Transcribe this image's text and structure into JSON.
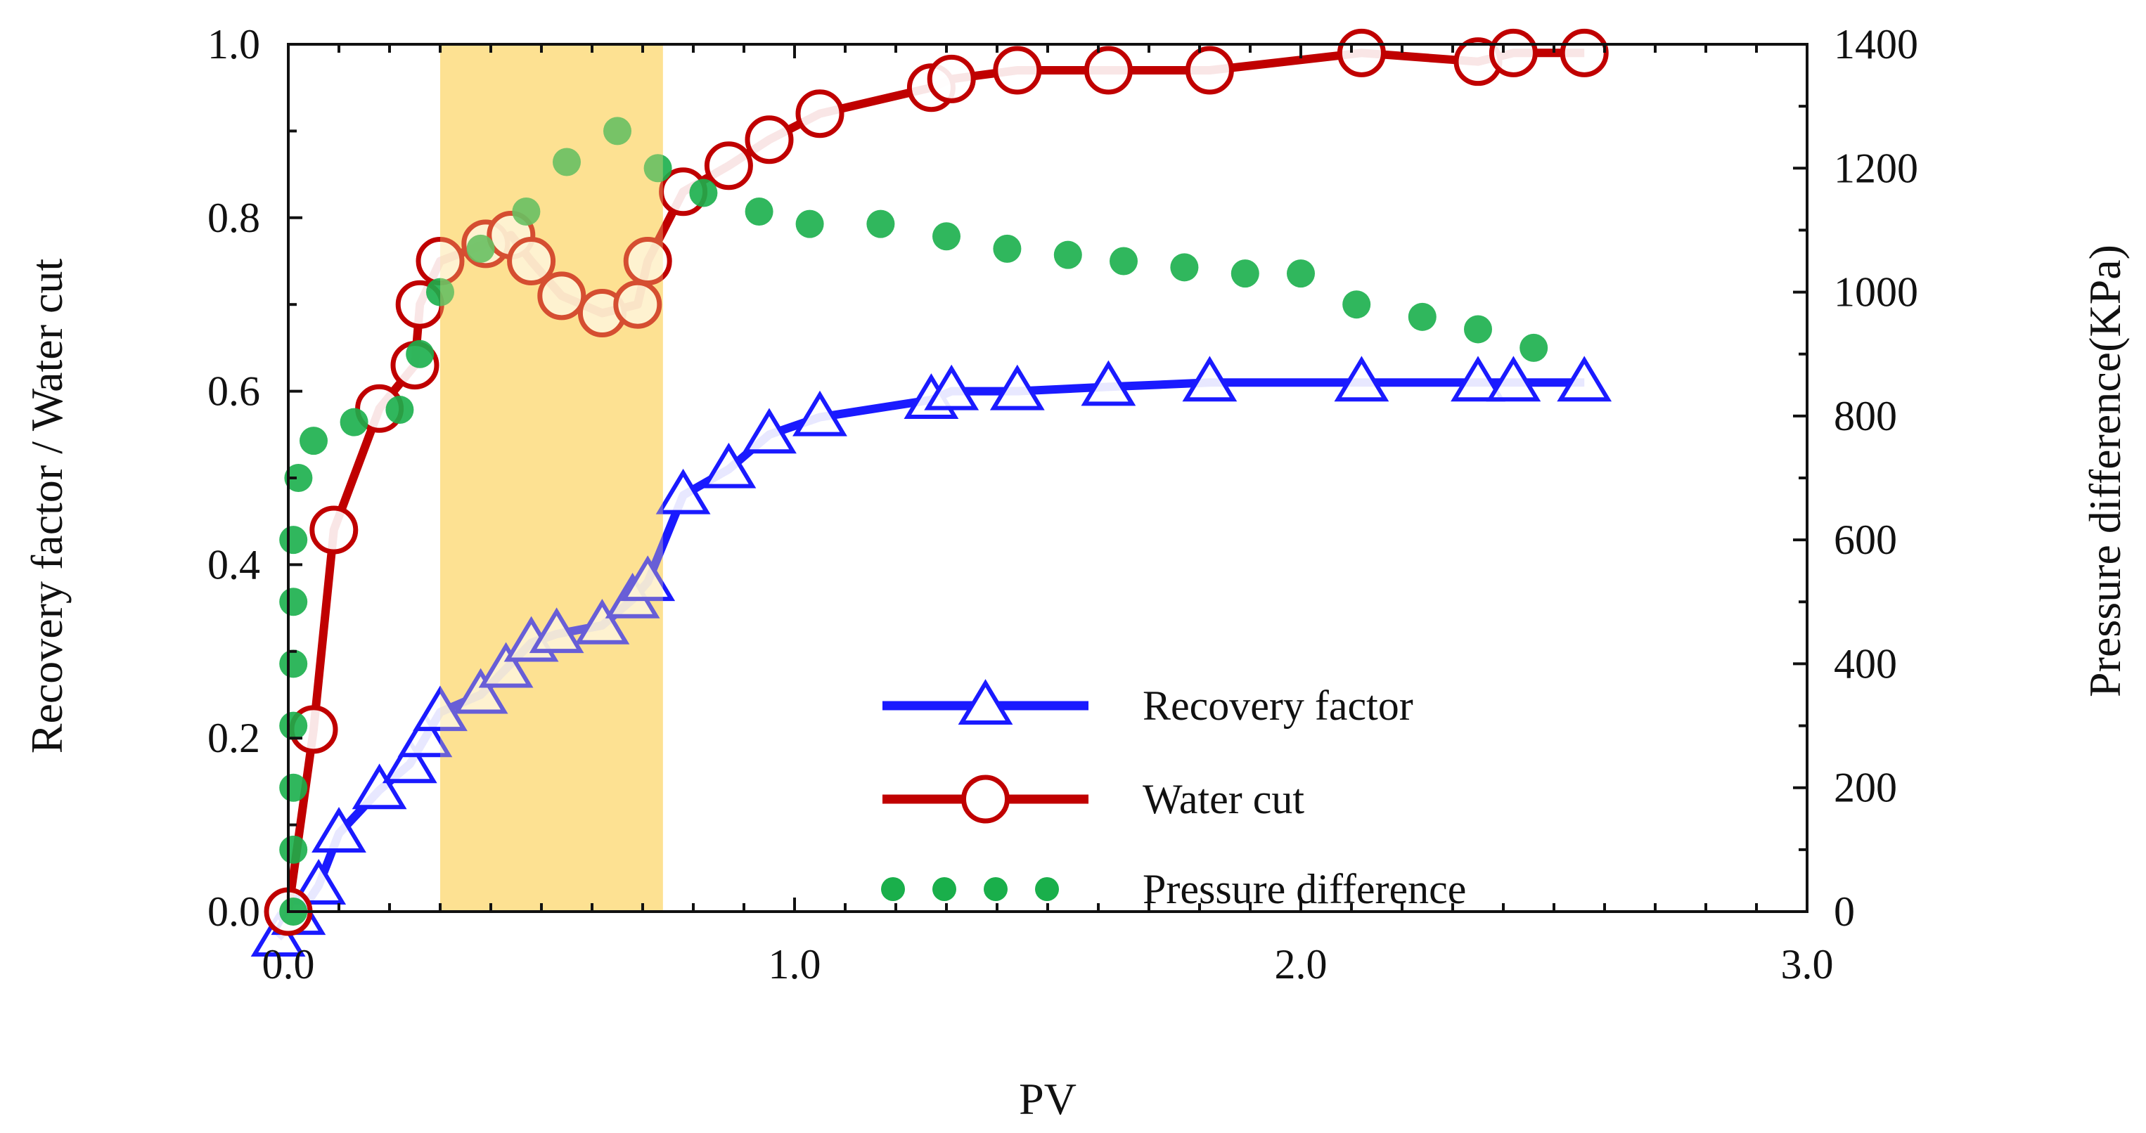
{
  "chart_data": {
    "type": "line",
    "title": "",
    "xlabel": "PV",
    "ylabel": "Recovery factor / Water cut",
    "y2label": "Pressure difference(KPa)",
    "xlim": [
      0,
      3.0
    ],
    "ylim": [
      0,
      1.0
    ],
    "y2lim": [
      0,
      1400
    ],
    "x_ticks": [
      "0.0",
      "1.0",
      "2.0",
      "3.0"
    ],
    "y_ticks": [
      "0.0",
      "0.2",
      "0.4",
      "0.6",
      "0.8",
      "1.0"
    ],
    "y2_ticks": [
      "0",
      "200",
      "400",
      "600",
      "800",
      "1000",
      "1200",
      "1400"
    ],
    "highlight_region": {
      "x_start": 0.3,
      "x_end": 0.74,
      "color": "#fde08c"
    },
    "legend_position": "center-right",
    "series": [
      {
        "name": "Recovery factor",
        "axis": "left",
        "style": "line-triangle",
        "color": "#1a1aff",
        "points": [
          [
            -0.02,
            -0.03
          ],
          [
            0.02,
            -0.005
          ],
          [
            0.06,
            0.03
          ],
          [
            0.1,
            0.09
          ],
          [
            0.18,
            0.14
          ],
          [
            0.24,
            0.17
          ],
          [
            0.27,
            0.2
          ],
          [
            0.3,
            0.23
          ],
          [
            0.38,
            0.25
          ],
          [
            0.43,
            0.28
          ],
          [
            0.48,
            0.31
          ],
          [
            0.53,
            0.32
          ],
          [
            0.62,
            0.33
          ],
          [
            0.68,
            0.36
          ],
          [
            0.71,
            0.38
          ],
          [
            0.78,
            0.48
          ],
          [
            0.87,
            0.51
          ],
          [
            0.95,
            0.55
          ],
          [
            1.05,
            0.57
          ],
          [
            1.27,
            0.59
          ],
          [
            1.31,
            0.6
          ],
          [
            1.44,
            0.6
          ],
          [
            1.62,
            0.605
          ],
          [
            1.82,
            0.61
          ],
          [
            2.12,
            0.61
          ],
          [
            2.35,
            0.61
          ],
          [
            2.42,
            0.61
          ],
          [
            2.56,
            0.61
          ]
        ]
      },
      {
        "name": "Water cut",
        "axis": "left",
        "style": "line-circle",
        "color": "#c00000",
        "points": [
          [
            0.0,
            0.0
          ],
          [
            0.05,
            0.21
          ],
          [
            0.09,
            0.44
          ],
          [
            0.18,
            0.58
          ],
          [
            0.25,
            0.63
          ],
          [
            0.26,
            0.7
          ],
          [
            0.3,
            0.75
          ],
          [
            0.39,
            0.77
          ],
          [
            0.44,
            0.78
          ],
          [
            0.48,
            0.75
          ],
          [
            0.54,
            0.71
          ],
          [
            0.62,
            0.69
          ],
          [
            0.69,
            0.7
          ],
          [
            0.71,
            0.75
          ],
          [
            0.78,
            0.83
          ],
          [
            0.87,
            0.86
          ],
          [
            0.95,
            0.89
          ],
          [
            1.05,
            0.92
          ],
          [
            1.27,
            0.95
          ],
          [
            1.31,
            0.96
          ],
          [
            1.44,
            0.97
          ],
          [
            1.62,
            0.97
          ],
          [
            1.82,
            0.97
          ],
          [
            2.12,
            0.99
          ],
          [
            2.35,
            0.98
          ],
          [
            2.42,
            0.99
          ],
          [
            2.56,
            0.99
          ]
        ]
      },
      {
        "name": "Pressure difference",
        "axis": "right",
        "style": "dots",
        "color": "#1aaf4b",
        "points": [
          [
            0.01,
            0
          ],
          [
            0.01,
            100
          ],
          [
            0.01,
            200
          ],
          [
            0.01,
            300
          ],
          [
            0.01,
            400
          ],
          [
            0.01,
            500
          ],
          [
            0.01,
            600
          ],
          [
            0.02,
            700
          ],
          [
            0.05,
            760
          ],
          [
            0.13,
            790
          ],
          [
            0.22,
            810
          ],
          [
            0.26,
            900
          ],
          [
            0.3,
            1000
          ],
          [
            0.38,
            1070
          ],
          [
            0.47,
            1130
          ],
          [
            0.55,
            1210
          ],
          [
            0.65,
            1260
          ],
          [
            0.73,
            1200
          ],
          [
            0.82,
            1160
          ],
          [
            0.93,
            1130
          ],
          [
            1.03,
            1110
          ],
          [
            1.17,
            1110
          ],
          [
            1.3,
            1090
          ],
          [
            1.42,
            1070
          ],
          [
            1.54,
            1060
          ],
          [
            1.65,
            1050
          ],
          [
            1.77,
            1040
          ],
          [
            1.89,
            1030
          ],
          [
            2.0,
            1030
          ],
          [
            2.11,
            980
          ],
          [
            2.24,
            960
          ],
          [
            2.35,
            940
          ],
          [
            2.46,
            910
          ]
        ]
      }
    ]
  }
}
